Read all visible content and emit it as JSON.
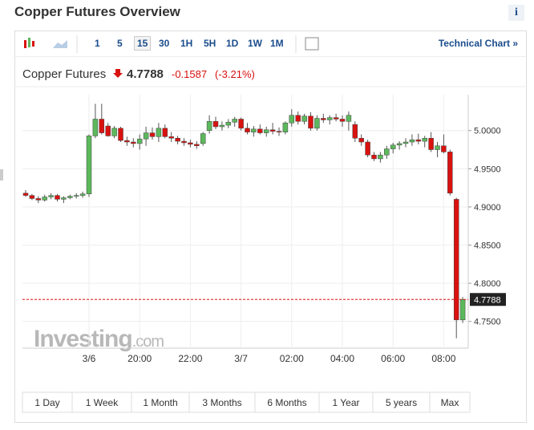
{
  "widget": {
    "title": "Copper Futures Overview",
    "info": "i",
    "intervals": [
      "1",
      "5",
      "15",
      "30",
      "1H",
      "5H",
      "1D",
      "1W",
      "1M"
    ],
    "active_interval": "15",
    "technical_chart": "Technical Chart »",
    "instrument": "Copper Futures",
    "change": "-0.1587",
    "change_percent": "(-3.21%)",
    "logo": "Investing",
    "logo_suffix": ".com",
    "ranges": [
      "1 Day",
      "1 Week",
      "1 Month",
      "3 Months",
      "6 Months",
      "1 Year",
      "5 years",
      "Max"
    ]
  },
  "chart_data": {
    "type": "candlestick",
    "up_color": "#5cb85c",
    "down_color": "#d9120f",
    "last_price": 4.7788,
    "last_price_label": "4.7788",
    "ylim": [
      4.715,
      5.047
    ],
    "yticks": [
      {
        "value": 4.75,
        "label": "4.7500"
      },
      {
        "value": 4.8,
        "label": "4.8000"
      },
      {
        "value": 4.85,
        "label": "4.8500"
      },
      {
        "value": 4.9,
        "label": "4.9000"
      },
      {
        "value": 4.95,
        "label": "4.9500"
      },
      {
        "value": 5.0,
        "label": "5.0000"
      }
    ],
    "grid": true,
    "categories": [
      null,
      null,
      null,
      null,
      null,
      null,
      null,
      null,
      null,
      null,
      "3/6",
      null,
      null,
      null,
      null,
      null,
      null,
      null,
      "20:00",
      null,
      null,
      null,
      null,
      null,
      null,
      null,
      "22:00",
      null,
      null,
      null,
      null,
      null,
      null,
      null,
      "3/7",
      null,
      null,
      null,
      null,
      null,
      null,
      null,
      "02:00",
      null,
      null,
      null,
      null,
      null,
      null,
      null,
      "04:00",
      null,
      null,
      null,
      null,
      null,
      null,
      null,
      "06:00",
      null,
      null,
      null,
      null,
      null,
      null,
      null,
      "08:00",
      null,
      null,
      null
    ],
    "open": [
      4.918,
      4.915,
      4.911,
      4.909,
      4.913,
      4.915,
      4.91,
      4.912,
      4.914,
      4.915,
      4.917,
      4.993,
      5.015,
      5.006,
      4.993,
      5.003,
      4.987,
      4.985,
      4.983,
      4.989,
      4.997,
      4.992,
      5.003,
      4.992,
      4.99,
      4.986,
      4.984,
      4.982,
      4.983,
      5.0,
      5.012,
      5.005,
      5.007,
      5.011,
      5.015,
      5.003,
      4.998,
      5.002,
      4.997,
      5.001,
      4.999,
      4.998,
      5.01,
      5.02,
      5.012,
      5.019,
      5.003,
      5.016,
      5.014,
      5.017,
      5.015,
      5.012,
      5.008,
      4.99,
      4.985,
      4.968,
      4.963,
      4.968,
      4.976,
      4.981,
      4.983,
      4.985,
      4.988,
      4.986,
      4.99,
      4.975,
      4.98,
      4.972,
      4.91,
      4.752
    ],
    "high": [
      4.922,
      4.917,
      4.914,
      4.916,
      4.918,
      4.917,
      4.914,
      4.916,
      4.918,
      4.92,
      4.995,
      5.035,
      5.035,
      5.01,
      5.006,
      5.005,
      4.992,
      4.99,
      4.995,
      5.005,
      5.004,
      5.01,
      5.008,
      4.998,
      4.993,
      4.99,
      4.988,
      4.986,
      4.998,
      5.02,
      5.018,
      5.012,
      5.015,
      5.018,
      5.017,
      5.01,
      5.006,
      5.008,
      5.005,
      5.01,
      5.004,
      5.012,
      5.028,
      5.025,
      5.022,
      5.024,
      5.02,
      5.022,
      5.02,
      5.022,
      5.02,
      5.025,
      5.012,
      4.995,
      4.988,
      4.972,
      4.972,
      4.98,
      4.984,
      4.986,
      4.99,
      4.995,
      4.996,
      4.993,
      4.998,
      4.985,
      4.995,
      4.975,
      4.912,
      4.782
    ],
    "low": [
      4.913,
      4.909,
      4.905,
      4.907,
      4.91,
      4.907,
      4.905,
      4.91,
      4.911,
      4.912,
      4.913,
      4.99,
      4.995,
      4.992,
      4.99,
      4.985,
      4.98,
      4.978,
      4.975,
      4.98,
      4.988,
      4.985,
      4.99,
      4.985,
      4.982,
      4.98,
      4.978,
      4.976,
      4.98,
      4.996,
      5.002,
      5.0,
      5.003,
      5.005,
      5.0,
      4.995,
      4.992,
      4.995,
      4.992,
      4.995,
      4.993,
      4.995,
      5.005,
      5.008,
      5.008,
      5.0,
      5.0,
      5.01,
      5.008,
      5.012,
      5.005,
      5.0,
      4.985,
      4.98,
      4.965,
      4.96,
      4.958,
      4.963,
      4.97,
      4.975,
      4.978,
      4.98,
      4.982,
      4.978,
      4.972,
      4.965,
      4.97,
      4.915,
      4.728,
      4.748
    ],
    "close": [
      4.915,
      4.911,
      4.909,
      4.913,
      4.915,
      4.91,
      4.912,
      4.914,
      4.915,
      4.917,
      4.993,
      5.015,
      4.997,
      4.993,
      5.003,
      4.987,
      4.985,
      4.983,
      4.989,
      4.997,
      4.992,
      5.003,
      4.992,
      4.99,
      4.986,
      4.984,
      4.982,
      4.98,
      4.996,
      5.012,
      5.005,
      5.007,
      5.011,
      5.015,
      5.003,
      4.998,
      5.002,
      4.997,
      5.001,
      4.999,
      4.998,
      5.01,
      5.02,
      5.012,
      5.019,
      5.003,
      5.016,
      5.014,
      5.017,
      5.015,
      5.012,
      5.02,
      4.99,
      4.985,
      4.968,
      4.963,
      4.968,
      4.976,
      4.981,
      4.983,
      4.985,
      4.988,
      4.986,
      4.99,
      4.975,
      4.98,
      4.972,
      4.918,
      4.752,
      4.7788
    ]
  }
}
